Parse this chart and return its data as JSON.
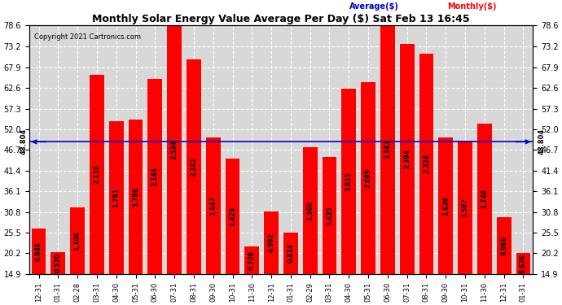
{
  "title": "Monthly Solar Energy Value Average Per Day ($) Sat Feb 13 16:45",
  "copyright": "Copyright 2021 Cartronics.com",
  "average_label": "48.804",
  "average_value": 48.804,
  "bar_color": "#ff0000",
  "avg_line_color": "#0000cc",
  "background_color": "#ffffff",
  "plot_bg_color": "#d8d8d8",
  "grid_color": "#ffffff",
  "ylim": [
    14.9,
    78.6
  ],
  "ymin": 14.9,
  "yticks": [
    14.9,
    20.2,
    25.5,
    30.8,
    36.1,
    41.4,
    46.7,
    52.0,
    57.3,
    62.6,
    67.9,
    73.2,
    78.6
  ],
  "categories": [
    "12-31",
    "01-31",
    "02-28",
    "03-31",
    "04-30",
    "05-31",
    "06-30",
    "07-31",
    "08-31",
    "09-30",
    "10-31",
    "11-30",
    "12-31",
    "01-31",
    "02-29",
    "03-31",
    "04-30",
    "05-31",
    "06-30",
    "07-31",
    "08-31",
    "09-30",
    "10-31",
    "11-30",
    "12-31",
    "01-31"
  ],
  "bar_top_values": [
    26.5,
    20.5,
    32.0,
    66.0,
    54.0,
    54.5,
    65.0,
    78.6,
    70.0,
    50.0,
    44.5,
    22.0,
    31.0,
    25.5,
    47.5,
    45.0,
    62.5,
    64.0,
    79.0,
    74.0,
    71.5,
    50.0,
    49.0,
    53.5,
    29.5,
    20.2
  ],
  "bar_labels": [
    "0.846",
    "0.520",
    "1.106",
    "2.116",
    "1.791",
    "1.786",
    "2.144",
    "2.534",
    "2.242",
    "1.647",
    "1.429",
    "0.709",
    "0.992",
    "0.814",
    "1.560",
    "1.425",
    "2.015",
    "2.099",
    "2.583",
    "2.394",
    "2.324",
    "1.639",
    "1.597",
    "1.749",
    "0.966",
    "0.626"
  ],
  "legend_avg_label": "Average($)",
  "legend_monthly_label": "Monthly($)",
  "legend_avg_color": "#0000cc",
  "legend_monthly_color": "#ff0000"
}
